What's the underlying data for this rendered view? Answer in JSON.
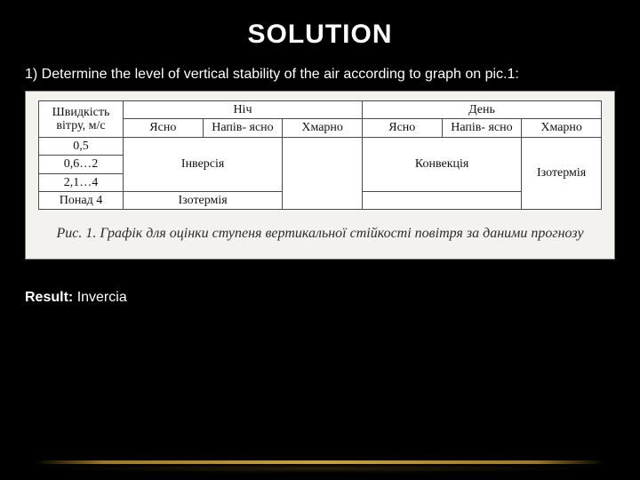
{
  "title": "SOLUTION",
  "intro": "1) Determine the level of vertical stability of the air according to graph on pic.1:",
  "table": {
    "windHeader": "Швидкість вітру, м/с",
    "nightHeader": "Ніч",
    "dayHeader": "День",
    "cond": {
      "clear": "Ясно",
      "semi": "Напів-\nясно",
      "cloudy": "Хмарно"
    },
    "windRows": [
      "0,5",
      "0,6…2",
      "2,1…4",
      "Понад 4"
    ],
    "inversion": "Інверсія",
    "convection": "Конвекція",
    "isothermA": "Ізотермія",
    "isothermB": "Ізотермія"
  },
  "caption": "Рис. 1. Графік для оцінки ступеня вертикальної стійкості повітря за даними прогнозу",
  "result": {
    "label": "Result:",
    "value": "Invercia"
  }
}
